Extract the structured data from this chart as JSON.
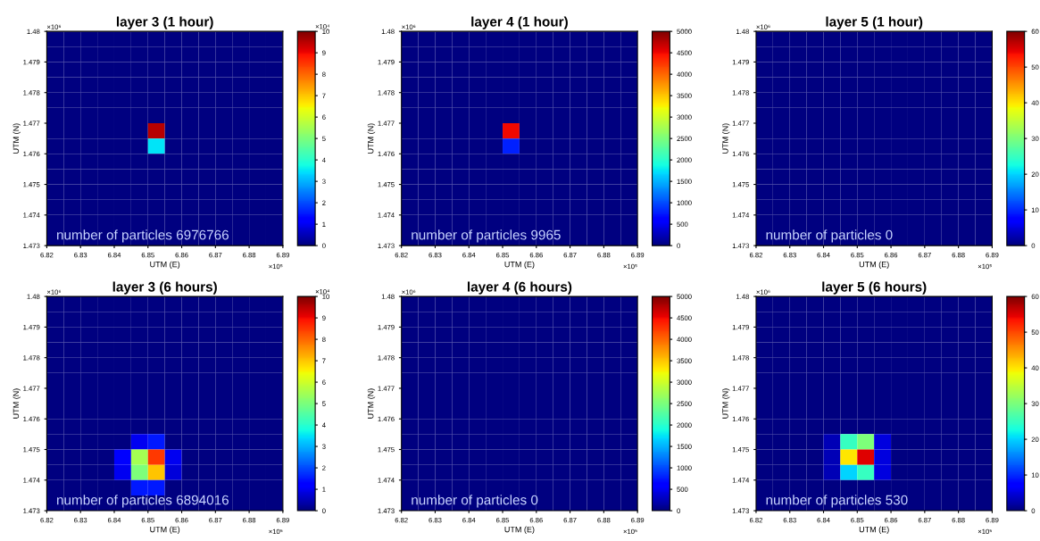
{
  "chart_data": [
    {
      "type": "heatmap",
      "title": "layer 3 (1 hour)",
      "xlabel": "UTM (E)",
      "ylabel": "UTM (N)",
      "x": [
        6.8225,
        6.8275,
        6.8325,
        6.8375,
        6.8425,
        6.8475,
        6.8525,
        6.8575,
        6.8625,
        6.8675,
        6.8725,
        6.8775,
        6.8825,
        6.8875
      ],
      "y": [
        1.47975,
        1.47925,
        1.47875,
        1.47825,
        1.47775,
        1.47725,
        1.47675,
        1.47625,
        1.47575,
        1.47525,
        1.47475,
        1.47425,
        1.47375,
        1.47325
      ],
      "cells": [
        [
          0,
          0,
          0,
          0,
          0,
          0,
          0,
          0,
          0,
          0,
          0,
          0,
          0,
          0
        ],
        [
          0,
          0,
          0,
          0,
          0,
          0,
          0,
          0,
          0,
          0,
          0,
          0,
          0,
          0
        ],
        [
          0,
          0,
          0,
          0,
          0,
          0,
          0,
          0,
          0,
          0,
          0,
          0,
          0,
          0
        ],
        [
          0,
          0,
          0,
          0,
          0,
          0,
          0,
          0,
          0,
          0,
          0,
          0,
          0,
          0
        ],
        [
          0,
          0,
          0,
          0,
          0,
          0,
          0,
          0,
          0,
          0,
          0,
          0,
          0,
          0
        ],
        [
          0,
          0,
          0,
          0,
          0,
          0,
          0,
          0,
          0,
          0,
          0,
          0,
          0,
          0
        ],
        [
          0,
          0,
          0,
          0,
          0,
          0,
          9.5,
          0,
          0,
          0,
          0,
          0,
          0,
          0
        ],
        [
          0,
          0,
          0,
          0,
          0,
          0,
          3.5,
          0,
          0,
          0,
          0,
          0,
          0,
          0
        ],
        [
          0,
          0,
          0,
          0,
          0,
          0,
          0,
          0,
          0,
          0,
          0,
          0,
          0,
          0
        ],
        [
          0,
          0,
          0,
          0,
          0,
          0,
          0,
          0,
          0,
          0,
          0,
          0,
          0,
          0
        ],
        [
          0,
          0,
          0,
          0,
          0,
          0,
          0,
          0,
          0,
          0,
          0,
          0,
          0,
          0
        ],
        [
          0,
          0,
          0,
          0,
          0,
          0,
          0,
          0,
          0,
          0,
          0,
          0,
          0,
          0
        ],
        [
          0,
          0,
          0,
          0,
          0,
          0,
          0,
          0,
          0,
          0,
          0,
          0,
          0,
          0
        ],
        [
          0,
          0,
          0,
          0,
          0,
          0,
          0,
          0,
          0,
          0,
          0,
          0,
          0,
          0
        ]
      ],
      "clim": [
        0,
        10
      ],
      "cticks": [
        0,
        1,
        2,
        3,
        4,
        5,
        6,
        7,
        8,
        9,
        10
      ],
      "xlim": [
        6.82,
        6.89
      ],
      "xticks": [
        6.82,
        6.83,
        6.84,
        6.85,
        6.86,
        6.87,
        6.88,
        6.89
      ],
      "ylim": [
        1.473,
        1.48
      ],
      "yticks": [
        1.473,
        1.474,
        1.475,
        1.476,
        1.477,
        1.478,
        1.479,
        1.48
      ],
      "annotations": [
        "number of particles 6976766",
        "×10⁵",
        "×10⁶",
        "×10⁴"
      ]
    },
    {
      "type": "heatmap",
      "title": "layer 4 (1 hour)",
      "xlabel": "UTM (E)",
      "ylabel": "UTM (N)",
      "x": [
        6.8225,
        6.8275,
        6.8325,
        6.8375,
        6.8425,
        6.8475,
        6.8525,
        6.8575,
        6.8625,
        6.8675,
        6.8725,
        6.8775,
        6.8825,
        6.8875
      ],
      "y": [
        1.47975,
        1.47925,
        1.47875,
        1.47825,
        1.47775,
        1.47725,
        1.47675,
        1.47625,
        1.47575,
        1.47525,
        1.47475,
        1.47425,
        1.47375,
        1.47325
      ],
      "cells": [
        [
          0,
          0,
          0,
          0,
          0,
          0,
          0,
          0,
          0,
          0,
          0,
          0,
          0,
          0
        ],
        [
          0,
          0,
          0,
          0,
          0,
          0,
          0,
          0,
          0,
          0,
          0,
          0,
          0,
          0
        ],
        [
          0,
          0,
          0,
          0,
          0,
          0,
          0,
          0,
          0,
          0,
          0,
          0,
          0,
          0
        ],
        [
          0,
          0,
          0,
          0,
          0,
          0,
          0,
          0,
          0,
          0,
          0,
          0,
          0,
          0
        ],
        [
          0,
          0,
          0,
          0,
          0,
          0,
          0,
          0,
          0,
          0,
          0,
          0,
          0,
          0
        ],
        [
          0,
          0,
          0,
          0,
          0,
          0,
          0,
          0,
          0,
          0,
          0,
          0,
          0,
          0
        ],
        [
          0,
          0,
          0,
          0,
          0,
          0,
          4500,
          0,
          0,
          0,
          0,
          0,
          0,
          0
        ],
        [
          0,
          0,
          0,
          0,
          0,
          0,
          800,
          0,
          0,
          0,
          0,
          0,
          0,
          0
        ],
        [
          0,
          0,
          0,
          0,
          0,
          0,
          0,
          0,
          0,
          0,
          0,
          0,
          0,
          0
        ],
        [
          0,
          0,
          0,
          0,
          0,
          0,
          0,
          0,
          0,
          0,
          0,
          0,
          0,
          0
        ],
        [
          0,
          0,
          0,
          0,
          0,
          0,
          0,
          0,
          0,
          0,
          0,
          0,
          0,
          0
        ],
        [
          0,
          0,
          0,
          0,
          0,
          0,
          0,
          0,
          0,
          0,
          0,
          0,
          0,
          0
        ],
        [
          0,
          0,
          0,
          0,
          0,
          0,
          0,
          0,
          0,
          0,
          0,
          0,
          0,
          0
        ],
        [
          0,
          0,
          0,
          0,
          0,
          0,
          0,
          0,
          0,
          0,
          0,
          0,
          0,
          0
        ]
      ],
      "clim": [
        0,
        5000
      ],
      "cticks": [
        0,
        500,
        1000,
        1500,
        2000,
        2500,
        3000,
        3500,
        4000,
        4500,
        5000
      ],
      "xlim": [
        6.82,
        6.89
      ],
      "xticks": [
        6.82,
        6.83,
        6.84,
        6.85,
        6.86,
        6.87,
        6.88,
        6.89
      ],
      "ylim": [
        1.473,
        1.48
      ],
      "yticks": [
        1.473,
        1.474,
        1.475,
        1.476,
        1.477,
        1.478,
        1.479,
        1.48
      ],
      "annotations": [
        "number of particles 9965",
        "×10⁵",
        "×10⁶"
      ]
    },
    {
      "type": "heatmap",
      "title": "layer 5 (1 hour)",
      "xlabel": "UTM (E)",
      "ylabel": "UTM (N)",
      "x": [
        6.8225,
        6.8275,
        6.8325,
        6.8375,
        6.8425,
        6.8475,
        6.8525,
        6.8575,
        6.8625,
        6.8675,
        6.8725,
        6.8775,
        6.8825,
        6.8875
      ],
      "y": [
        1.47975,
        1.47925,
        1.47875,
        1.47825,
        1.47775,
        1.47725,
        1.47675,
        1.47625,
        1.47575,
        1.47525,
        1.47475,
        1.47425,
        1.47375,
        1.47325
      ],
      "cells": [
        [
          0,
          0,
          0,
          0,
          0,
          0,
          0,
          0,
          0,
          0,
          0,
          0,
          0,
          0
        ],
        [
          0,
          0,
          0,
          0,
          0,
          0,
          0,
          0,
          0,
          0,
          0,
          0,
          0,
          0
        ],
        [
          0,
          0,
          0,
          0,
          0,
          0,
          0,
          0,
          0,
          0,
          0,
          0,
          0,
          0
        ],
        [
          0,
          0,
          0,
          0,
          0,
          0,
          0,
          0,
          0,
          0,
          0,
          0,
          0,
          0
        ],
        [
          0,
          0,
          0,
          0,
          0,
          0,
          0,
          0,
          0,
          0,
          0,
          0,
          0,
          0
        ],
        [
          0,
          0,
          0,
          0,
          0,
          0,
          0,
          0,
          0,
          0,
          0,
          0,
          0,
          0
        ],
        [
          0,
          0,
          0,
          0,
          0,
          0,
          0,
          0,
          0,
          0,
          0,
          0,
          0,
          0
        ],
        [
          0,
          0,
          0,
          0,
          0,
          0,
          0,
          0,
          0,
          0,
          0,
          0,
          0,
          0
        ],
        [
          0,
          0,
          0,
          0,
          0,
          0,
          0,
          0,
          0,
          0,
          0,
          0,
          0,
          0
        ],
        [
          0,
          0,
          0,
          0,
          0,
          0,
          0,
          0,
          0,
          0,
          0,
          0,
          0,
          0
        ],
        [
          0,
          0,
          0,
          0,
          0,
          0,
          0,
          0,
          0,
          0,
          0,
          0,
          0,
          0
        ],
        [
          0,
          0,
          0,
          0,
          0,
          0,
          0,
          0,
          0,
          0,
          0,
          0,
          0,
          0
        ],
        [
          0,
          0,
          0,
          0,
          0,
          0,
          0,
          0,
          0,
          0,
          0,
          0,
          0,
          0
        ],
        [
          0,
          0,
          0,
          0,
          0,
          0,
          0,
          0,
          0,
          0,
          0,
          0,
          0,
          0
        ]
      ],
      "clim": [
        0,
        60
      ],
      "cticks": [
        0,
        10,
        20,
        30,
        40,
        50,
        60
      ],
      "xlim": [
        6.82,
        6.89
      ],
      "xticks": [
        6.82,
        6.83,
        6.84,
        6.85,
        6.86,
        6.87,
        6.88,
        6.89
      ],
      "ylim": [
        1.473,
        1.48
      ],
      "yticks": [
        1.473,
        1.474,
        1.475,
        1.476,
        1.477,
        1.478,
        1.479,
        1.48
      ],
      "annotations": [
        "number of particles 0",
        "×10⁵",
        "×10⁶"
      ]
    },
    {
      "type": "heatmap",
      "title": "layer 3 (6 hours)",
      "xlabel": "UTM (E)",
      "ylabel": "UTM (N)",
      "x": [
        6.8225,
        6.8275,
        6.8325,
        6.8375,
        6.8425,
        6.8475,
        6.8525,
        6.8575,
        6.8625,
        6.8675,
        6.8725,
        6.8775,
        6.8825,
        6.8875
      ],
      "y": [
        1.47975,
        1.47925,
        1.47875,
        1.47825,
        1.47775,
        1.47725,
        1.47675,
        1.47625,
        1.47575,
        1.47525,
        1.47475,
        1.47425,
        1.47375,
        1.47325
      ],
      "cells": [
        [
          0,
          0,
          0,
          0,
          0,
          0,
          0,
          0,
          0,
          0,
          0,
          0,
          0,
          0
        ],
        [
          0,
          0,
          0,
          0,
          0,
          0,
          0,
          0,
          0,
          0,
          0,
          0,
          0,
          0
        ],
        [
          0,
          0,
          0,
          0,
          0,
          0,
          0,
          0,
          0,
          0,
          0,
          0,
          0,
          0
        ],
        [
          0,
          0,
          0,
          0,
          0,
          0,
          0,
          0,
          0,
          0,
          0,
          0,
          0,
          0
        ],
        [
          0,
          0,
          0,
          0,
          0,
          0,
          0,
          0,
          0,
          0,
          0,
          0,
          0,
          0
        ],
        [
          0,
          0,
          0,
          0,
          0,
          0,
          0,
          0,
          0,
          0,
          0,
          0,
          0,
          0
        ],
        [
          0,
          0,
          0,
          0,
          0,
          0,
          0,
          0,
          0,
          0,
          0,
          0,
          0,
          0
        ],
        [
          0,
          0,
          0,
          0,
          0,
          0,
          0,
          0,
          0,
          0,
          0,
          0,
          0,
          0
        ],
        [
          0,
          0,
          0,
          0,
          0,
          0,
          0,
          0,
          0,
          0,
          0,
          0,
          0,
          0
        ],
        [
          0,
          0,
          0,
          0,
          0,
          1,
          1.5,
          0,
          0,
          0,
          0,
          0,
          0,
          0
        ],
        [
          0,
          0,
          0,
          0,
          1.2,
          5.5,
          8.5,
          1,
          0,
          0,
          0,
          0,
          0,
          0
        ],
        [
          0,
          0,
          0,
          0,
          1,
          5,
          7,
          0.8,
          0,
          0,
          0,
          0,
          0,
          0
        ],
        [
          0,
          0,
          0,
          0,
          0,
          1.5,
          1.5,
          0,
          0,
          0,
          0,
          0,
          0,
          0
        ],
        [
          0,
          0,
          0,
          0,
          0,
          0,
          0,
          0,
          0,
          0,
          0,
          0,
          0,
          0
        ]
      ],
      "clim": [
        0,
        10
      ],
      "cticks": [
        0,
        1,
        2,
        3,
        4,
        5,
        6,
        7,
        8,
        9,
        10
      ],
      "xlim": [
        6.82,
        6.89
      ],
      "xticks": [
        6.82,
        6.83,
        6.84,
        6.85,
        6.86,
        6.87,
        6.88,
        6.89
      ],
      "ylim": [
        1.473,
        1.48
      ],
      "yticks": [
        1.473,
        1.474,
        1.475,
        1.476,
        1.477,
        1.478,
        1.479,
        1.48
      ],
      "annotations": [
        "number of particles 6894016",
        "×10⁵",
        "×10⁶",
        "×10⁴"
      ]
    },
    {
      "type": "heatmap",
      "title": "layer 4 (6 hours)",
      "xlabel": "UTM (E)",
      "ylabel": "UTM (N)",
      "x": [
        6.8225,
        6.8275,
        6.8325,
        6.8375,
        6.8425,
        6.8475,
        6.8525,
        6.8575,
        6.8625,
        6.8675,
        6.8725,
        6.8775,
        6.8825,
        6.8875
      ],
      "y": [
        1.47975,
        1.47925,
        1.47875,
        1.47825,
        1.47775,
        1.47725,
        1.47675,
        1.47625,
        1.47575,
        1.47525,
        1.47475,
        1.47425,
        1.47375,
        1.47325
      ],
      "cells": [
        [
          0,
          0,
          0,
          0,
          0,
          0,
          0,
          0,
          0,
          0,
          0,
          0,
          0,
          0
        ],
        [
          0,
          0,
          0,
          0,
          0,
          0,
          0,
          0,
          0,
          0,
          0,
          0,
          0,
          0
        ],
        [
          0,
          0,
          0,
          0,
          0,
          0,
          0,
          0,
          0,
          0,
          0,
          0,
          0,
          0
        ],
        [
          0,
          0,
          0,
          0,
          0,
          0,
          0,
          0,
          0,
          0,
          0,
          0,
          0,
          0
        ],
        [
          0,
          0,
          0,
          0,
          0,
          0,
          0,
          0,
          0,
          0,
          0,
          0,
          0,
          0
        ],
        [
          0,
          0,
          0,
          0,
          0,
          0,
          0,
          0,
          0,
          0,
          0,
          0,
          0,
          0
        ],
        [
          0,
          0,
          0,
          0,
          0,
          0,
          0,
          0,
          0,
          0,
          0,
          0,
          0,
          0
        ],
        [
          0,
          0,
          0,
          0,
          0,
          0,
          0,
          0,
          0,
          0,
          0,
          0,
          0,
          0
        ],
        [
          0,
          0,
          0,
          0,
          0,
          0,
          0,
          0,
          0,
          0,
          0,
          0,
          0,
          0
        ],
        [
          0,
          0,
          0,
          0,
          0,
          0,
          0,
          0,
          0,
          0,
          0,
          0,
          0,
          0
        ],
        [
          0,
          0,
          0,
          0,
          0,
          0,
          0,
          0,
          0,
          0,
          0,
          0,
          0,
          0
        ],
        [
          0,
          0,
          0,
          0,
          0,
          0,
          0,
          0,
          0,
          0,
          0,
          0,
          0,
          0
        ],
        [
          0,
          0,
          0,
          0,
          0,
          0,
          0,
          0,
          0,
          0,
          0,
          0,
          0,
          0
        ],
        [
          0,
          0,
          0,
          0,
          0,
          0,
          0,
          0,
          0,
          0,
          0,
          0,
          0,
          0
        ]
      ],
      "clim": [
        0,
        5000
      ],
      "cticks": [
        0,
        500,
        1000,
        1500,
        2000,
        2500,
        3000,
        3500,
        4000,
        4500,
        5000
      ],
      "xlim": [
        6.82,
        6.89
      ],
      "xticks": [
        6.82,
        6.83,
        6.84,
        6.85,
        6.86,
        6.87,
        6.88,
        6.89
      ],
      "ylim": [
        1.473,
        1.48
      ],
      "yticks": [
        1.473,
        1.474,
        1.475,
        1.476,
        1.477,
        1.478,
        1.479,
        1.48
      ],
      "annotations": [
        "number of particles 0",
        "×10⁵",
        "×10⁶"
      ]
    },
    {
      "type": "heatmap",
      "title": "layer 5 (6 hours)",
      "xlabel": "UTM (E)",
      "ylabel": "UTM (N)",
      "x": [
        6.8225,
        6.8275,
        6.8325,
        6.8375,
        6.8425,
        6.8475,
        6.8525,
        6.8575,
        6.8625,
        6.8675,
        6.8725,
        6.8775,
        6.8825,
        6.8875
      ],
      "y": [
        1.47975,
        1.47925,
        1.47875,
        1.47825,
        1.47775,
        1.47725,
        1.47675,
        1.47625,
        1.47575,
        1.47525,
        1.47475,
        1.47425,
        1.47375,
        1.47325
      ],
      "cells": [
        [
          0,
          0,
          0,
          0,
          0,
          0,
          0,
          0,
          0,
          0,
          0,
          0,
          0,
          0
        ],
        [
          0,
          0,
          0,
          0,
          0,
          0,
          0,
          0,
          0,
          0,
          0,
          0,
          0,
          0
        ],
        [
          0,
          0,
          0,
          0,
          0,
          0,
          0,
          0,
          0,
          0,
          0,
          0,
          0,
          0
        ],
        [
          0,
          0,
          0,
          0,
          0,
          0,
          0,
          0,
          0,
          0,
          0,
          0,
          0,
          0
        ],
        [
          0,
          0,
          0,
          0,
          0,
          0,
          0,
          0,
          0,
          0,
          0,
          0,
          0,
          0
        ],
        [
          0,
          0,
          0,
          0,
          0,
          0,
          0,
          0,
          0,
          0,
          0,
          0,
          0,
          0
        ],
        [
          0,
          0,
          0,
          0,
          0,
          0,
          0,
          0,
          0,
          0,
          0,
          0,
          0,
          0
        ],
        [
          0,
          0,
          0,
          0,
          0,
          0,
          0,
          0,
          0,
          0,
          0,
          0,
          0,
          0
        ],
        [
          0,
          0,
          0,
          0,
          0,
          0,
          0,
          0,
          0,
          0,
          0,
          0,
          0,
          0
        ],
        [
          0,
          0,
          0,
          0,
          3,
          25,
          30,
          5,
          0,
          0,
          0,
          0,
          0,
          0
        ],
        [
          0,
          0,
          0,
          0,
          3,
          40,
          55,
          5,
          0,
          0,
          0,
          0,
          0,
          0
        ],
        [
          0,
          0,
          0,
          0,
          3,
          20,
          25,
          5,
          0,
          0,
          0,
          0,
          0,
          0
        ],
        [
          0,
          0,
          0,
          0,
          0,
          0,
          0,
          0,
          0,
          0,
          0,
          0,
          0,
          0
        ],
        [
          0,
          0,
          0,
          0,
          0,
          0,
          0,
          0,
          0,
          0,
          0,
          0,
          0,
          0
        ]
      ],
      "clim": [
        0,
        60
      ],
      "cticks": [
        0,
        10,
        20,
        30,
        40,
        50,
        60
      ],
      "xlim": [
        6.82,
        6.89
      ],
      "xticks": [
        6.82,
        6.83,
        6.84,
        6.85,
        6.86,
        6.87,
        6.88,
        6.89
      ],
      "ylim": [
        1.473,
        1.48
      ],
      "yticks": [
        1.473,
        1.474,
        1.475,
        1.476,
        1.477,
        1.478,
        1.479,
        1.48
      ],
      "annotations": [
        "number of particles 530",
        "×10⁵",
        "×10⁶"
      ]
    }
  ]
}
